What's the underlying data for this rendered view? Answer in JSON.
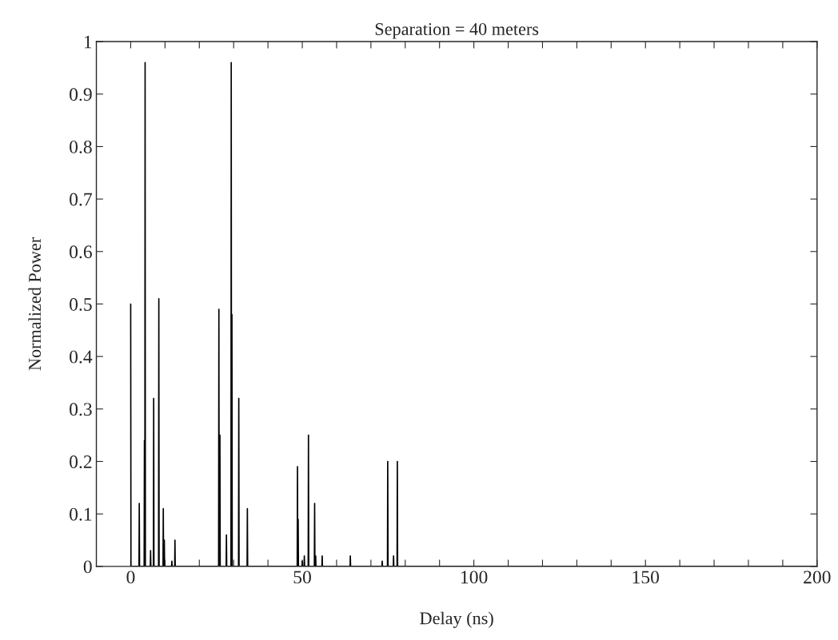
{
  "chart_data": {
    "type": "line",
    "title": "Separation = 40 meters",
    "xlabel": "Delay (ns)",
    "ylabel": "Normalized Power",
    "series": [
      {
        "color": "#000000",
        "x": [
          0,
          0.08,
          2.42,
          2.5,
          2.58,
          3.92,
          4.0,
          4.08,
          4.12,
          4.2,
          4.28,
          5.72,
          5.8,
          5.88,
          6.62,
          6.7,
          6.78,
          8.12,
          8.2,
          8.28,
          9.42,
          9.5,
          9.58,
          9.72,
          9.8,
          9.88,
          11.92,
          12.0,
          12.08,
          12.82,
          12.9,
          12.98,
          25.62,
          25.7,
          25.78,
          25.92,
          26.0,
          26.08,
          27.82,
          27.9,
          27.98,
          29.22,
          29.3,
          29.38,
          29.42,
          29.5,
          29.58,
          31.42,
          31.5,
          31.58,
          33.92,
          34.0,
          34.08,
          48.52,
          48.6,
          48.68,
          48.72,
          48.8,
          48.88,
          49.92,
          50.0,
          50.08,
          50.52,
          50.6,
          50.68,
          51.72,
          51.8,
          51.88,
          53.52,
          53.6,
          53.68,
          53.82,
          53.9,
          53.98,
          55.72,
          55.8,
          55.88,
          63.92,
          64.0,
          64.08,
          73.22,
          73.3,
          73.38,
          74.82,
          74.9,
          74.98,
          76.52,
          76.6,
          76.68,
          77.62,
          77.7,
          77.78,
          200
        ],
        "values": [
          0.5,
          0,
          0,
          0.12,
          0,
          0,
          0.24,
          0,
          0,
          0.96,
          0,
          0,
          0.03,
          0,
          0,
          0.32,
          0,
          0,
          0.51,
          0,
          0,
          0.11,
          0,
          0,
          0.05,
          0,
          0,
          0.01,
          0,
          0,
          0.05,
          0,
          0,
          0.49,
          0,
          0,
          0.25,
          0,
          0,
          0.06,
          0,
          0,
          0.96,
          0,
          0,
          0.48,
          0,
          0,
          0.32,
          0,
          0,
          0.11,
          0,
          0,
          0.19,
          0,
          0,
          0.09,
          0,
          0,
          0.01,
          0,
          0,
          0.02,
          0,
          0,
          0.25,
          0,
          0,
          0.12,
          0,
          0,
          0.02,
          0,
          0,
          0.02,
          0,
          0,
          0.02,
          0,
          0,
          0.01,
          0,
          0,
          0.2,
          0,
          0,
          0.02,
          0,
          0,
          0.2,
          0,
          0
        ]
      }
    ],
    "xlim": [
      -10,
      200
    ],
    "xticks": [
      0,
      {
        "value": 10,
        "label": null
      },
      {
        "value": 20,
        "label": null
      },
      {
        "value": 30,
        "label": null
      },
      {
        "value": 40,
        "label": null
      },
      50,
      {
        "value": 60,
        "label": null
      },
      {
        "value": 70,
        "label": null
      },
      {
        "value": 80,
        "label": null
      },
      {
        "value": 90,
        "label": null
      },
      100,
      {
        "value": 110,
        "label": null
      },
      {
        "value": 120,
        "label": null
      },
      {
        "value": 130,
        "label": null
      },
      {
        "value": 140,
        "label": null
      },
      150,
      {
        "value": 160,
        "label": null
      },
      {
        "value": 170,
        "label": null
      },
      {
        "value": 180,
        "label": null
      },
      {
        "value": 190,
        "label": null
      },
      200
    ],
    "ylim": [
      0,
      1
    ],
    "yticks": [
      0,
      0.1,
      0.2,
      0.3,
      0.4,
      0.5,
      0.6,
      0.7,
      0.8,
      0.9,
      1
    ],
    "grid": false,
    "legend": false
  }
}
